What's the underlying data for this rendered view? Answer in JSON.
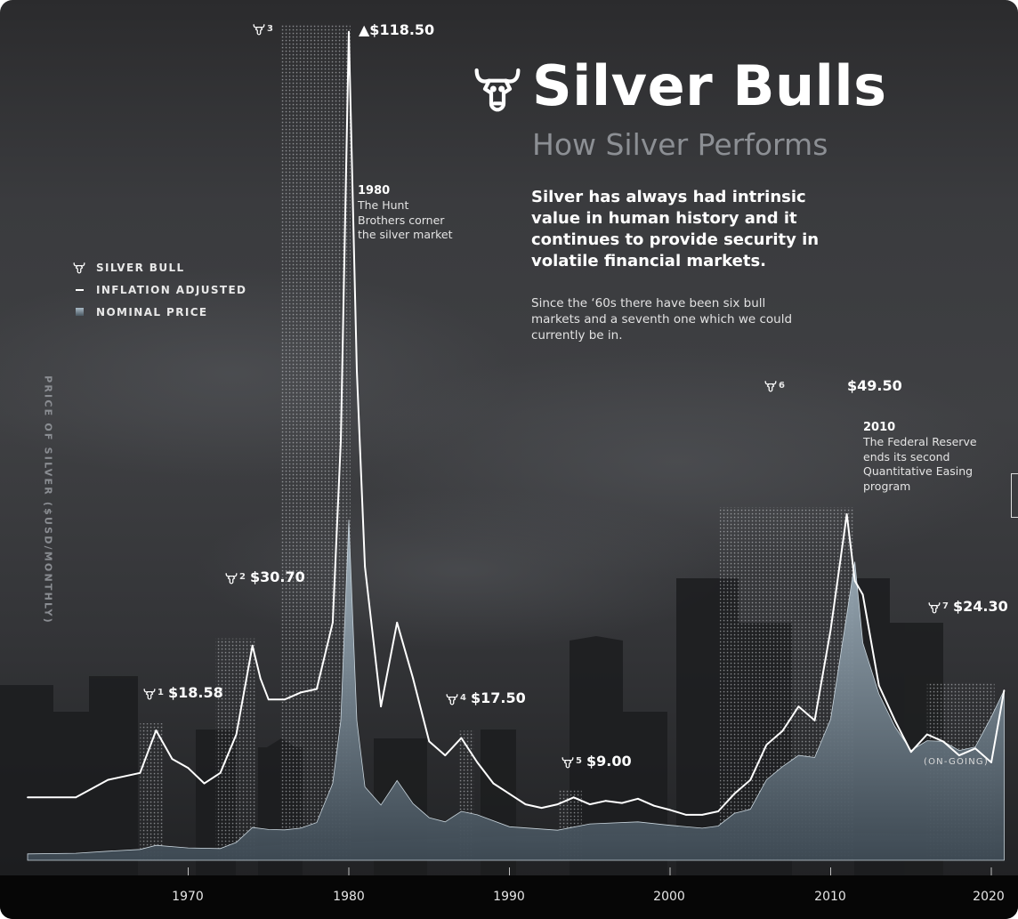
{
  "title": "Silver Bulls",
  "subtitle": "How Silver Performs",
  "intro": {
    "lead": "Silver has always had intrinsic value in human history and it continues to provide security in volatile financial markets.",
    "body": "Since the ‘60s there have been six bull markets and a seventh one which we could currently be in."
  },
  "legend": {
    "silver_bull": "SILVER BULL",
    "inflation_adjusted": "INFLATION ADJUSTED",
    "nominal_price": "NOMINAL PRICE"
  },
  "y_axis_label": "PRICE OF SILVER ($USD/MONTHLY)",
  "peak_label": "▲$118.50",
  "ongoing_label": "(ON-GOING)",
  "colors": {
    "inflation_line": "#ffffff",
    "nominal_fill_top": "#9fb0bd",
    "nominal_fill_bottom": "#3e4a54",
    "bull_band_dots": "#cfd2d6"
  },
  "icons": {
    "bull": "bull-head-icon"
  },
  "annotations": [
    {
      "year": "1980",
      "text": "The Hunt Brothers corner the silver market"
    },
    {
      "year": "2010",
      "text": "The Federal Reserve ends its second Quantitative Easing program"
    }
  ],
  "chart_data": {
    "type": "area",
    "title": "Silver Bulls",
    "subtitle": "How Silver Performs",
    "xlabel": "",
    "ylabel": "PRICE OF SILVER ($USD/MONTHLY)",
    "xlim": [
      1960,
      2021
    ],
    "ylim": [
      0,
      120
    ],
    "x_ticks": [
      "1970",
      "1980",
      "1990",
      "2000",
      "2010",
      "2020"
    ],
    "legend_position": "left",
    "series": [
      {
        "name": "INFLATION ADJUSTED",
        "style": "line",
        "x": [
          1960,
          1963,
          1965,
          1967,
          1968,
          1969,
          1970,
          1971,
          1972,
          1973,
          1974,
          1974.5,
          1975,
          1976,
          1977,
          1978,
          1979,
          1979.5,
          1980,
          1980.5,
          1981,
          1982,
          1983,
          1984,
          1985,
          1986,
          1987,
          1988,
          1989,
          1990,
          1991,
          1992,
          1993,
          1994,
          1995,
          1996,
          1997,
          1998,
          1999,
          2000,
          2001,
          2002,
          2003,
          2004,
          2005,
          2006,
          2007,
          2008,
          2009,
          2010,
          2011,
          2011.5,
          2012,
          2013,
          2014,
          2015,
          2016,
          2017,
          2018,
          2019,
          2020,
          2020.8
        ],
        "y": [
          9.0,
          9.0,
          11.5,
          12.5,
          18.58,
          14.5,
          13.2,
          11.0,
          12.5,
          18.0,
          30.7,
          26.0,
          23.0,
          23.0,
          24.0,
          24.5,
          34.0,
          60.0,
          118.5,
          70.0,
          42.0,
          22.0,
          34.0,
          26.0,
          17.0,
          15.0,
          17.5,
          14.0,
          11.0,
          9.5,
          8.0,
          7.5,
          8.0,
          9.0,
          8.0,
          8.5,
          8.2,
          8.8,
          7.8,
          7.2,
          6.5,
          6.5,
          7.0,
          9.5,
          11.5,
          16.5,
          18.5,
          22.0,
          20.0,
          33.0,
          49.5,
          40.0,
          38.0,
          25.0,
          20.0,
          15.5,
          18.0,
          17.0,
          15.0,
          16.0,
          14.0,
          24.3
        ]
      },
      {
        "name": "NOMINAL PRICE",
        "style": "area",
        "x": [
          1960,
          1963,
          1965,
          1967,
          1968,
          1970,
          1972,
          1973,
          1974,
          1975,
          1976,
          1977,
          1978,
          1979,
          1979.5,
          1980,
          1980.5,
          1981,
          1982,
          1983,
          1984,
          1985,
          1986,
          1987,
          1988,
          1990,
          1993,
          1995,
          1998,
          2000,
          2002,
          2003,
          2004,
          2005,
          2006,
          2007,
          2008,
          2009,
          2010,
          2011,
          2011.5,
          2012,
          2013,
          2014,
          2015,
          2016,
          2017,
          2018,
          2019,
          2020,
          2020.8
        ],
        "y": [
          0.91,
          1.0,
          1.3,
          1.55,
          2.14,
          1.77,
          1.68,
          2.56,
          4.7,
          4.4,
          4.35,
          4.6,
          5.4,
          11.0,
          20.0,
          48.7,
          20.0,
          10.5,
          7.9,
          11.4,
          8.1,
          6.1,
          5.5,
          7.0,
          6.5,
          4.8,
          4.3,
          5.2,
          5.5,
          5.0,
          4.6,
          4.9,
          6.7,
          7.3,
          11.5,
          13.4,
          15.0,
          14.7,
          20.2,
          35.1,
          42.7,
          31.1,
          23.8,
          19.1,
          15.7,
          17.1,
          17.0,
          15.7,
          16.2,
          20.5,
          24.3
        ]
      }
    ],
    "bull_markets": [
      {
        "id": "1",
        "start": 1967.0,
        "end": 1968.5,
        "label": "$18.58"
      },
      {
        "id": "2",
        "start": 1971.7,
        "end": 1974.2,
        "label": "$30.70"
      },
      {
        "id": "3",
        "start": 1975.8,
        "end": 1980.1,
        "label": ""
      },
      {
        "id": "4",
        "start": 1986.8,
        "end": 1987.8,
        "label": "$17.50"
      },
      {
        "id": "5",
        "start": 1993.0,
        "end": 1994.5,
        "label": "$9.00"
      },
      {
        "id": "6",
        "start": 2003.1,
        "end": 2011.4,
        "label": "$49.50"
      },
      {
        "id": "7",
        "start": 2016.0,
        "end": 2020.2,
        "label": "$24.30"
      }
    ]
  }
}
